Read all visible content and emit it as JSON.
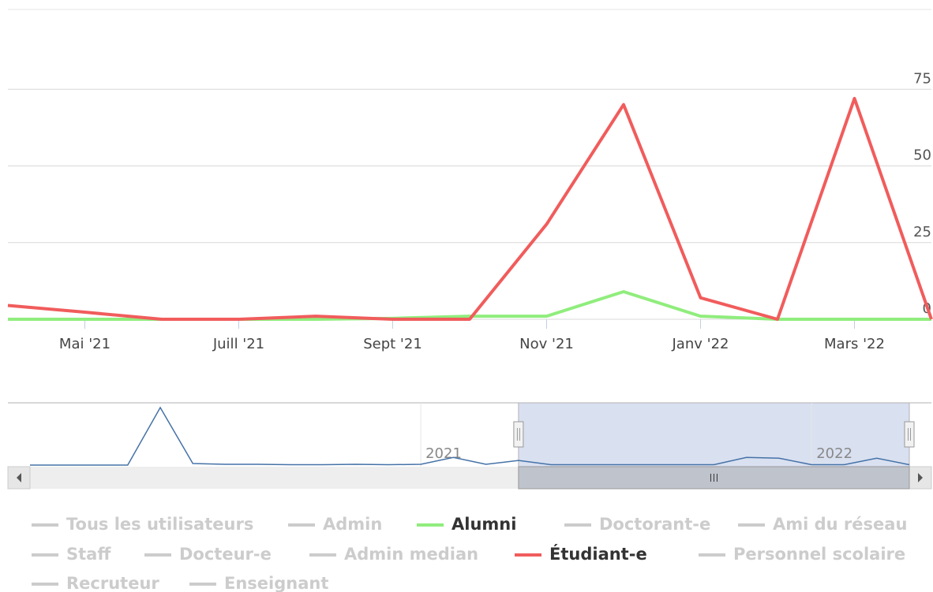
{
  "chart_data": {
    "type": "line",
    "x": [
      "2021-04",
      "2021-05",
      "2021-06",
      "2021-07",
      "2021-08",
      "2021-09",
      "2021-10",
      "2021-11",
      "2021-12",
      "2022-01",
      "2022-02",
      "2022-03",
      "2022-04"
    ],
    "xlim": [
      "2021-04",
      "2022-04"
    ],
    "xticks": [
      {
        "value": "2021-05",
        "label": "Mai '21"
      },
      {
        "value": "2021-07",
        "label": "Juill '21"
      },
      {
        "value": "2021-09",
        "label": "Sept '21"
      },
      {
        "value": "2021-11",
        "label": "Nov '21"
      },
      {
        "value": "2022-01",
        "label": "Janv '22"
      },
      {
        "value": "2022-03",
        "label": "Mars '22"
      }
    ],
    "ylim": [
      0,
      100
    ],
    "yticks": [
      0,
      25,
      50,
      75
    ],
    "grid": true,
    "series": [
      {
        "name": "Tous les utilisateurs",
        "color": "#cccccc",
        "visible": false
      },
      {
        "name": "Admin",
        "color": "#cccccc",
        "visible": false
      },
      {
        "name": "Alumni",
        "color": "#90ed7d",
        "visible": true,
        "values": [
          0,
          0,
          0,
          0,
          0,
          0.3,
          1,
          1,
          9,
          1,
          0,
          0,
          0
        ]
      },
      {
        "name": "Doctorant-e",
        "color": "#cccccc",
        "visible": false
      },
      {
        "name": "Ami du réseau",
        "color": "#cccccc",
        "visible": false
      },
      {
        "name": "Staff",
        "color": "#cccccc",
        "visible": false
      },
      {
        "name": "Docteur-e",
        "color": "#cccccc",
        "visible": false
      },
      {
        "name": "Admin median",
        "color": "#cccccc",
        "visible": false
      },
      {
        "name": "Étudiant-e",
        "color": "#f15c5c",
        "visible": true,
        "values": [
          4.5,
          2.3,
          0,
          0,
          1,
          0,
          0,
          31,
          70,
          7,
          0,
          72,
          0
        ]
      },
      {
        "name": "Personnel scolaire",
        "color": "#cccccc",
        "visible": false
      },
      {
        "name": "Recruteur",
        "color": "#cccccc",
        "visible": false
      },
      {
        "name": "Enseignant",
        "color": "#cccccc",
        "visible": false
      }
    ],
    "navigator": {
      "color": "#4572a7",
      "x": [
        "2020-01",
        "2020-02",
        "2020-03",
        "2020-04",
        "2020-05",
        "2020-06",
        "2020-07",
        "2020-08",
        "2020-09",
        "2020-10",
        "2020-11",
        "2020-12",
        "2021-01",
        "2021-02",
        "2021-03",
        "2021-04",
        "2021-05",
        "2021-06",
        "2021-07",
        "2021-08",
        "2021-09",
        "2021-10",
        "2021-11",
        "2021-12",
        "2022-01",
        "2022-02",
        "2022-03",
        "2022-04"
      ],
      "values": [
        0,
        0,
        0,
        0,
        75,
        2,
        1,
        1,
        0.5,
        0.5,
        1,
        0.5,
        1,
        10,
        1,
        6,
        0.5,
        0.5,
        0.5,
        0.5,
        0.5,
        0.5,
        10,
        9,
        0.5,
        0.5,
        9,
        0.5
      ],
      "xlim": [
        "2020-01",
        "2022-04"
      ],
      "ylim": [
        0,
        75
      ],
      "xticks": [
        {
          "value": "2021-01",
          "label": "2021"
        },
        {
          "value": "2022-01",
          "label": "2022"
        }
      ]
    }
  }
}
